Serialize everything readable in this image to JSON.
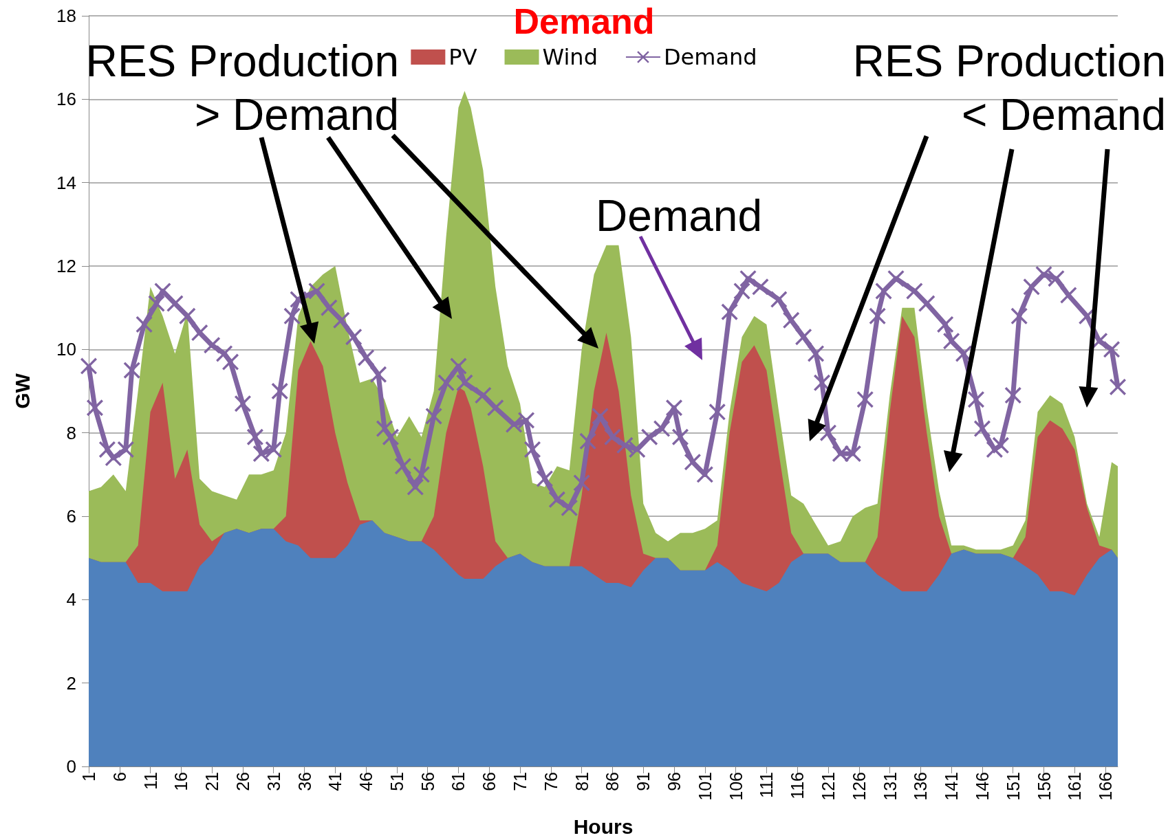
{
  "chart_data": {
    "type": "area",
    "title": "Demand",
    "xlabel": "Hours",
    "ylabel": "GW",
    "x": [
      1,
      3,
      5,
      7,
      9,
      11,
      13,
      15,
      17,
      19,
      21,
      23,
      25,
      27,
      29,
      31,
      33,
      35,
      37,
      39,
      41,
      43,
      45,
      47,
      49,
      51,
      53,
      55,
      57,
      59,
      61,
      62,
      63,
      65,
      67,
      69,
      71,
      73,
      75,
      77,
      79,
      81,
      83,
      85,
      87,
      89,
      91,
      93,
      95,
      97,
      99,
      101,
      103,
      105,
      107,
      109,
      111,
      113,
      115,
      117,
      119,
      121,
      123,
      125,
      127,
      129,
      131,
      133,
      135,
      137,
      139,
      141,
      143,
      145,
      147,
      149,
      151,
      153,
      155,
      157,
      159,
      161,
      163,
      165,
      167,
      168
    ],
    "stacked": true,
    "series": [
      {
        "color": "#4f81bd",
        "values": [
          5.0,
          4.9,
          4.9,
          4.9,
          4.4,
          4.4,
          4.2,
          4.2,
          4.2,
          4.8,
          5.1,
          5.6,
          5.7,
          5.6,
          5.7,
          5.7,
          5.4,
          5.3,
          5.0,
          5.0,
          5.0,
          5.3,
          5.8,
          5.9,
          5.6,
          5.5,
          5.4,
          5.4,
          5.2,
          4.9,
          4.6,
          4.5,
          4.5,
          4.5,
          4.8,
          5.0,
          5.1,
          4.9,
          4.8,
          4.8,
          4.8,
          4.8,
          4.6,
          4.4,
          4.4,
          4.3,
          4.7,
          5.0,
          5.0,
          4.7,
          4.7,
          4.7,
          4.9,
          4.7,
          4.4,
          4.3,
          4.2,
          4.4,
          4.9,
          5.1,
          5.1,
          5.1,
          4.9,
          4.9,
          4.9,
          4.6,
          4.4,
          4.2,
          4.2,
          4.2,
          4.6,
          5.1,
          5.2,
          5.1,
          5.1,
          5.1,
          5.0,
          4.8,
          4.6,
          4.2,
          4.2,
          4.1,
          4.6,
          5.0,
          5.2,
          5.0
        ]
      },
      {
        "name": "PV",
        "color": "#c0504d",
        "values": [
          0,
          0,
          0,
          0,
          0.9,
          4.1,
          5.0,
          2.7,
          3.4,
          1.0,
          0.3,
          0,
          0,
          0,
          0,
          0,
          0.6,
          4.2,
          5.2,
          4.6,
          3.0,
          1.5,
          0.1,
          0,
          0,
          0,
          0,
          0,
          0.8,
          3.1,
          4.5,
          4.5,
          4.1,
          2.7,
          0.6,
          0,
          0,
          0,
          0,
          0,
          0,
          1.7,
          4.4,
          6.0,
          4.6,
          2.2,
          0.4,
          0,
          0,
          0,
          0,
          0,
          0.4,
          3.3,
          5.3,
          5.8,
          5.3,
          3.1,
          0.7,
          0,
          0,
          0,
          0,
          0,
          0,
          0.9,
          4.1,
          6.6,
          6.1,
          3.8,
          1.4,
          0,
          0,
          0,
          0,
          0,
          0,
          0.7,
          3.3,
          4.1,
          3.9,
          3.5,
          1.6,
          0.3,
          0,
          0
        ]
      },
      {
        "name": "Wind",
        "color": "#9bbb59",
        "values": [
          1.6,
          1.8,
          2.1,
          1.7,
          3.7,
          3.0,
          1.6,
          3.0,
          3.3,
          1.1,
          1.2,
          0.9,
          0.7,
          1.4,
          1.3,
          1.4,
          2.0,
          1.3,
          1.3,
          2.2,
          4.0,
          3.7,
          3.3,
          3.4,
          3.2,
          2.4,
          3.0,
          2.5,
          3.0,
          4.7,
          6.7,
          7.2,
          7.2,
          7.1,
          6.1,
          4.6,
          3.6,
          1.9,
          1.9,
          2.4,
          2.3,
          3.5,
          2.8,
          2.1,
          3.5,
          3.8,
          1.2,
          0.6,
          0.4,
          0.9,
          0.9,
          1.0,
          0.6,
          0.5,
          0.6,
          0.7,
          1.1,
          1.0,
          0.9,
          1.2,
          0.7,
          0.2,
          0.5,
          1.1,
          1.3,
          0.8,
          0.4,
          0.2,
          0.7,
          0.6,
          0.6,
          0.2,
          0.1,
          0.1,
          0.1,
          0.1,
          0.3,
          0.4,
          0.6,
          0.6,
          0.6,
          0.3,
          0.1,
          0.2,
          2.1,
          2.2
        ]
      },
      {
        "name": "Demand",
        "type": "line",
        "color": "#8064a2",
        "marker": "cross",
        "x": [
          1,
          2,
          4,
          5,
          7,
          8,
          10,
          12,
          13,
          15,
          17,
          19,
          21,
          23,
          24,
          26,
          28,
          29,
          31,
          32,
          34,
          35,
          38,
          40,
          42,
          44,
          46,
          48,
          49,
          50,
          52,
          54,
          55,
          57,
          59,
          61,
          62,
          65,
          67,
          70,
          72,
          73,
          75,
          77,
          79,
          81,
          82,
          84,
          86,
          88,
          90,
          92,
          94,
          96,
          97,
          99,
          101,
          103,
          105,
          107,
          108,
          110,
          113,
          115,
          117,
          119,
          120,
          121,
          123,
          125,
          127,
          129,
          130,
          132,
          135,
          137,
          140,
          141,
          143,
          145,
          146,
          148,
          149,
          151,
          152,
          154,
          156,
          158,
          160,
          163,
          165,
          167,
          168
        ],
        "values": [
          9.6,
          8.6,
          7.6,
          7.4,
          7.6,
          9.5,
          10.6,
          11.1,
          11.4,
          11.1,
          10.8,
          10.4,
          10.1,
          9.9,
          9.7,
          8.7,
          7.9,
          7.5,
          7.6,
          9.0,
          10.8,
          11.2,
          11.4,
          11.0,
          10.7,
          10.3,
          9.8,
          9.4,
          8.1,
          7.9,
          7.2,
          6.7,
          7.0,
          8.4,
          9.2,
          9.6,
          9.2,
          8.9,
          8.6,
          8.2,
          8.3,
          7.6,
          6.9,
          6.4,
          6.2,
          6.8,
          7.8,
          8.4,
          7.9,
          7.7,
          7.6,
          7.9,
          8.1,
          8.6,
          7.9,
          7.3,
          7.0,
          8.5,
          10.9,
          11.4,
          11.7,
          11.5,
          11.2,
          10.7,
          10.3,
          9.9,
          9.2,
          8.0,
          7.5,
          7.5,
          8.8,
          10.8,
          11.4,
          11.7,
          11.4,
          11.1,
          10.6,
          10.2,
          9.9,
          8.8,
          8.1,
          7.6,
          7.7,
          8.9,
          10.8,
          11.5,
          11.8,
          11.7,
          11.3,
          10.8,
          10.2,
          10.0,
          9.1
        ]
      }
    ],
    "xlim": [
      1,
      168
    ],
    "xticks": [
      1,
      6,
      11,
      16,
      21,
      26,
      31,
      36,
      41,
      46,
      51,
      56,
      61,
      66,
      71,
      76,
      81,
      86,
      91,
      96,
      101,
      106,
      111,
      116,
      121,
      126,
      131,
      136,
      141,
      146,
      151,
      156,
      161,
      166
    ],
    "ylim": [
      0,
      18
    ],
    "yticks": [
      0,
      2,
      4,
      6,
      8,
      10,
      12,
      14,
      16,
      18
    ],
    "grid": "y",
    "legend": "top",
    "annotations": [
      "RES Production > Demand",
      "RES Production < Demand",
      "Demand"
    ]
  }
}
